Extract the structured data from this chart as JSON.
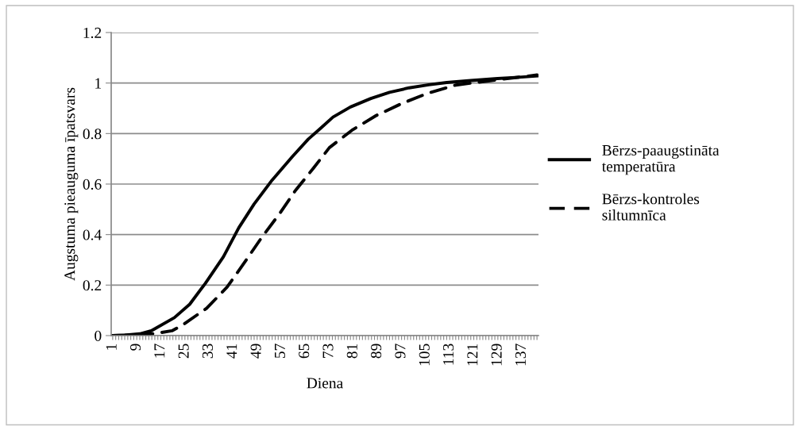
{
  "chart_data": {
    "type": "line",
    "xlabel": "Diena",
    "ylabel": "Augstuma pieauguma īpatsvars",
    "x": [
      1,
      5,
      10,
      13.8,
      21.5,
      26.6,
      31.8,
      37.8,
      42.9,
      48,
      54,
      60.8,
      66,
      70,
      74.2,
      80,
      86.8,
      93,
      99.5,
      106,
      112,
      120,
      128.9,
      136,
      142
    ],
    "series": [
      {
        "name": "Bērzs-paaugstināta temperatūra",
        "color": "#000000",
        "line_style": "solid",
        "values": [
          0,
          0.002,
          0.007,
          0.019,
          0.071,
          0.124,
          0.207,
          0.312,
          0.427,
          0.521,
          0.616,
          0.71,
          0.778,
          0.82,
          0.865,
          0.905,
          0.939,
          0.963,
          0.981,
          0.993,
          1.002,
          1.01,
          1.018,
          1.023,
          1.028
        ]
      },
      {
        "name": "Bērzs-kontroles siltumnīca",
        "color": "#000000",
        "line_style": "dashed",
        "x": [
          1,
          10,
          15,
          20.7,
          24,
          32.2,
          39,
          44.6,
          50.6,
          56.6,
          61.7,
          67.7,
          73,
          80.5,
          88.5,
          96.9,
          105.3,
          115,
          128.9,
          142
        ],
        "values": [
          0,
          0.003,
          0.008,
          0.019,
          0.04,
          0.108,
          0.192,
          0.286,
          0.39,
          0.485,
          0.574,
          0.663,
          0.744,
          0.813,
          0.871,
          0.918,
          0.958,
          0.992,
          1.013,
          1.032
        ]
      }
    ],
    "xlim": [
      0.5,
      142.5
    ],
    "ylim": [
      0,
      1.2
    ],
    "yticks": [
      0,
      0.2,
      0.4,
      0.6,
      0.8,
      1,
      1.2
    ],
    "xticks": [
      1,
      {
        "value": 2,
        "label": null
      },
      {
        "value": 3,
        "label": null
      },
      {
        "value": 4,
        "label": null
      },
      {
        "value": 5,
        "label": null
      },
      {
        "value": 6,
        "label": null
      },
      {
        "value": 7,
        "label": null
      },
      {
        "value": 8,
        "label": null
      },
      9,
      {
        "value": 10,
        "label": null
      },
      {
        "value": 11,
        "label": null
      },
      {
        "value": 12,
        "label": null
      },
      {
        "value": 13,
        "label": null
      },
      {
        "value": 14,
        "label": null
      },
      {
        "value": 15,
        "label": null
      },
      {
        "value": 16,
        "label": null
      },
      17,
      {
        "value": 18,
        "label": null
      },
      {
        "value": 19,
        "label": null
      },
      {
        "value": 20,
        "label": null
      },
      {
        "value": 21,
        "label": null
      },
      {
        "value": 22,
        "label": null
      },
      {
        "value": 23,
        "label": null
      },
      {
        "value": 24,
        "label": null
      },
      25,
      {
        "value": 26,
        "label": null
      },
      {
        "value": 27,
        "label": null
      },
      {
        "value": 28,
        "label": null
      },
      {
        "value": 29,
        "label": null
      },
      {
        "value": 30,
        "label": null
      },
      {
        "value": 31,
        "label": null
      },
      {
        "value": 32,
        "label": null
      },
      33,
      {
        "value": 34,
        "label": null
      },
      {
        "value": 35,
        "label": null
      },
      {
        "value": 36,
        "label": null
      },
      {
        "value": 37,
        "label": null
      },
      {
        "value": 38,
        "label": null
      },
      {
        "value": 39,
        "label": null
      },
      {
        "value": 40,
        "label": null
      },
      41,
      {
        "value": 42,
        "label": null
      },
      {
        "value": 43,
        "label": null
      },
      {
        "value": 44,
        "label": null
      },
      {
        "value": 45,
        "label": null
      },
      {
        "value": 46,
        "label": null
      },
      {
        "value": 47,
        "label": null
      },
      {
        "value": 48,
        "label": null
      },
      49,
      {
        "value": 50,
        "label": null
      },
      {
        "value": 51,
        "label": null
      },
      {
        "value": 52,
        "label": null
      },
      {
        "value": 53,
        "label": null
      },
      {
        "value": 54,
        "label": null
      },
      {
        "value": 55,
        "label": null
      },
      {
        "value": 56,
        "label": null
      },
      57,
      {
        "value": 58,
        "label": null
      },
      {
        "value": 59,
        "label": null
      },
      {
        "value": 60,
        "label": null
      },
      {
        "value": 61,
        "label": null
      },
      {
        "value": 62,
        "label": null
      },
      {
        "value": 63,
        "label": null
      },
      {
        "value": 64,
        "label": null
      },
      65,
      {
        "value": 66,
        "label": null
      },
      {
        "value": 67,
        "label": null
      },
      {
        "value": 68,
        "label": null
      },
      {
        "value": 69,
        "label": null
      },
      {
        "value": 70,
        "label": null
      },
      {
        "value": 71,
        "label": null
      },
      {
        "value": 72,
        "label": null
      },
      73,
      {
        "value": 74,
        "label": null
      },
      {
        "value": 75,
        "label": null
      },
      {
        "value": 76,
        "label": null
      },
      {
        "value": 77,
        "label": null
      },
      {
        "value": 78,
        "label": null
      },
      {
        "value": 79,
        "label": null
      },
      {
        "value": 80,
        "label": null
      },
      81,
      {
        "value": 82,
        "label": null
      },
      {
        "value": 83,
        "label": null
      },
      {
        "value": 84,
        "label": null
      },
      {
        "value": 85,
        "label": null
      },
      {
        "value": 86,
        "label": null
      },
      {
        "value": 87,
        "label": null
      },
      {
        "value": 88,
        "label": null
      },
      89,
      {
        "value": 90,
        "label": null
      },
      {
        "value": 91,
        "label": null
      },
      {
        "value": 92,
        "label": null
      },
      {
        "value": 93,
        "label": null
      },
      {
        "value": 94,
        "label": null
      },
      {
        "value": 95,
        "label": null
      },
      {
        "value": 96,
        "label": null
      },
      97,
      {
        "value": 98,
        "label": null
      },
      {
        "value": 99,
        "label": null
      },
      {
        "value": 100,
        "label": null
      },
      {
        "value": 101,
        "label": null
      },
      {
        "value": 102,
        "label": null
      },
      {
        "value": 103,
        "label": null
      },
      {
        "value": 104,
        "label": null
      },
      105,
      {
        "value": 106,
        "label": null
      },
      {
        "value": 107,
        "label": null
      },
      {
        "value": 108,
        "label": null
      },
      {
        "value": 109,
        "label": null
      },
      {
        "value": 110,
        "label": null
      },
      {
        "value": 111,
        "label": null
      },
      {
        "value": 112,
        "label": null
      },
      113,
      {
        "value": 114,
        "label": null
      },
      {
        "value": 115,
        "label": null
      },
      {
        "value": 116,
        "label": null
      },
      {
        "value": 117,
        "label": null
      },
      {
        "value": 118,
        "label": null
      },
      {
        "value": 119,
        "label": null
      },
      {
        "value": 120,
        "label": null
      },
      121,
      {
        "value": 122,
        "label": null
      },
      {
        "value": 123,
        "label": null
      },
      {
        "value": 124,
        "label": null
      },
      {
        "value": 125,
        "label": null
      },
      {
        "value": 126,
        "label": null
      },
      {
        "value": 127,
        "label": null
      },
      {
        "value": 128,
        "label": null
      },
      129,
      {
        "value": 130,
        "label": null
      },
      {
        "value": 131,
        "label": null
      },
      {
        "value": 132,
        "label": null
      },
      {
        "value": 133,
        "label": null
      },
      {
        "value": 134,
        "label": null
      },
      {
        "value": 135,
        "label": null
      },
      {
        "value": 136,
        "label": null
      },
      137,
      {
        "value": 138,
        "label": null
      },
      {
        "value": 139,
        "label": null
      },
      {
        "value": 140,
        "label": null
      },
      {
        "value": 141,
        "label": null
      },
      {
        "value": 142,
        "label": null
      }
    ],
    "grid": "y",
    "legend": "right",
    "marker": "none"
  }
}
